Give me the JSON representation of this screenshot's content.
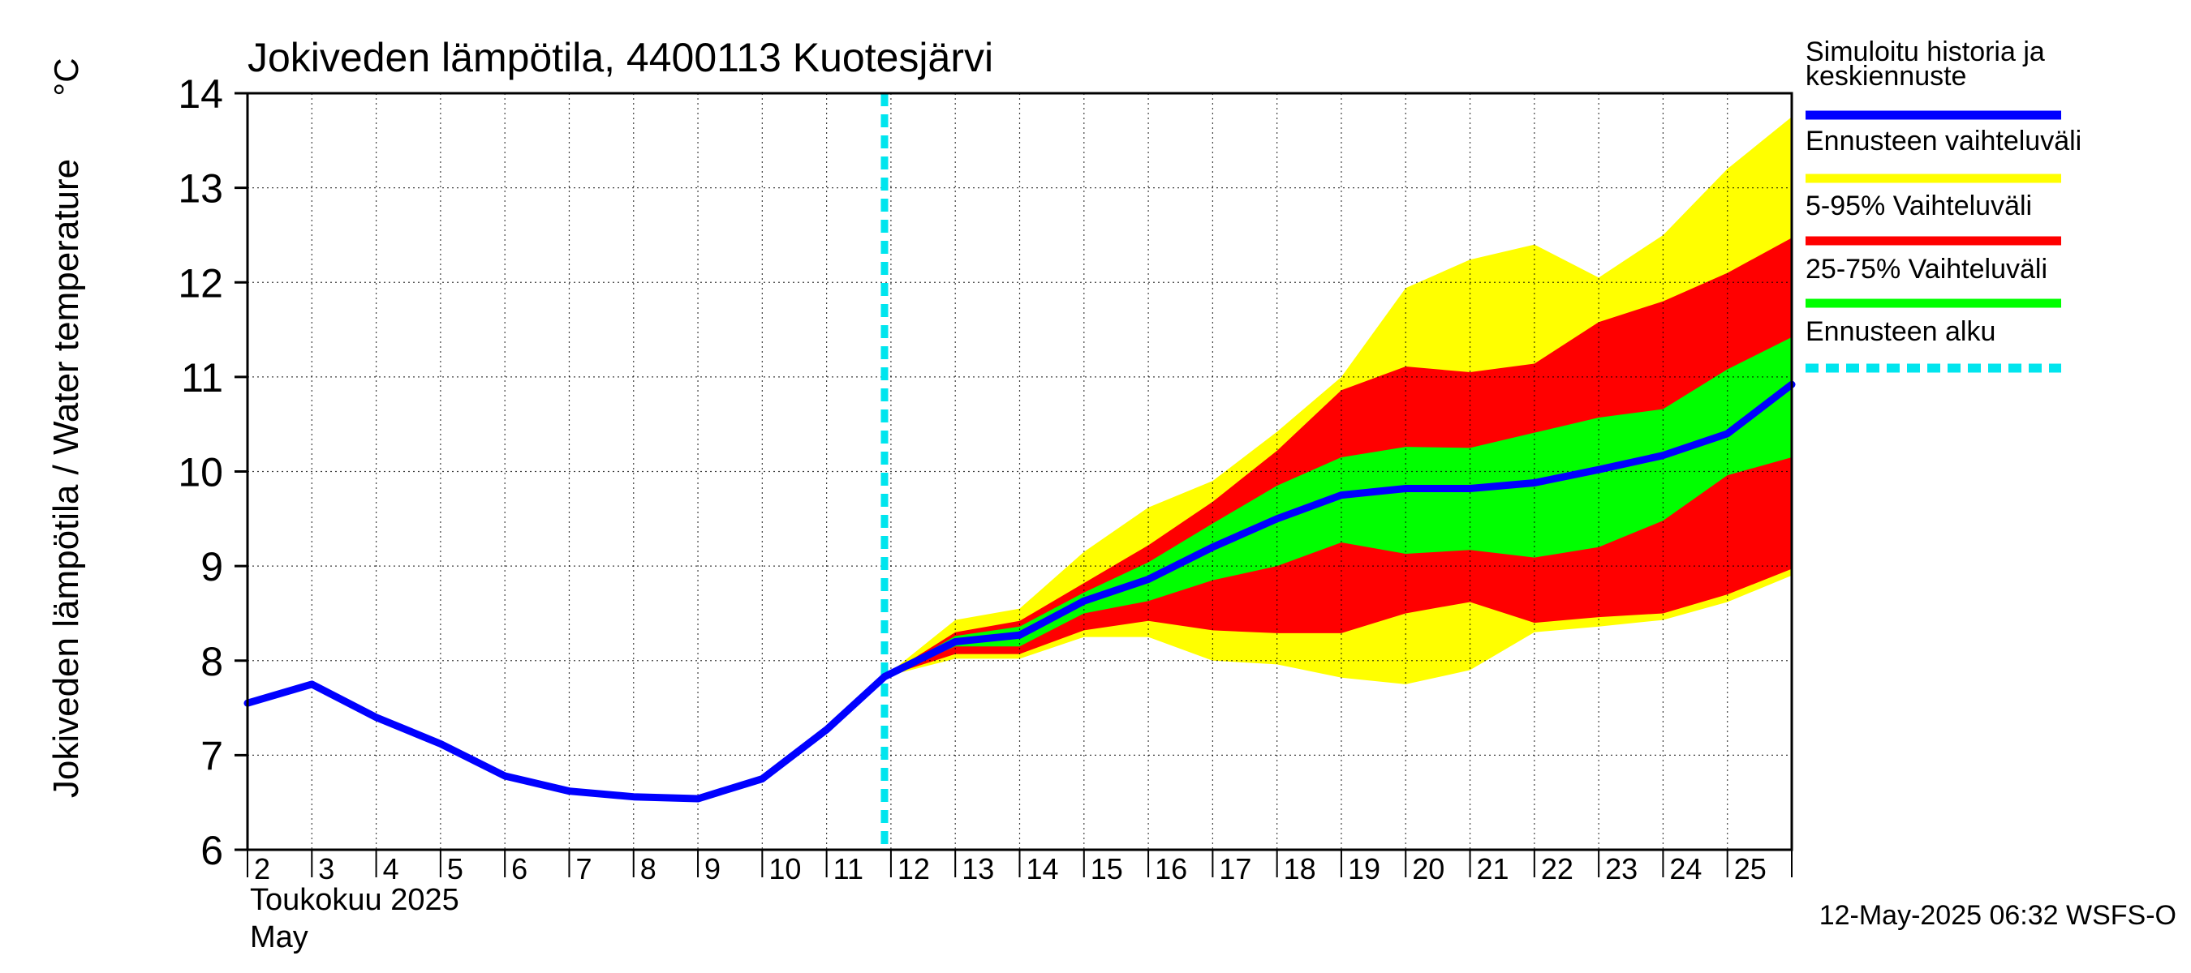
{
  "chart_data": {
    "type": "area",
    "title": "Jokiveden lämpötila, 4400113 Kuotesjärvi",
    "ylabel": "Jokiveden lämpötila / Water temperature",
    "yunit": "°C",
    "month_label_fi": "Toukokuu  2025",
    "month_label_en": "May",
    "timestamp": "12-May-2025 06:32 WSFS-O",
    "ylim": [
      6,
      14
    ],
    "xlim": [
      2,
      26
    ],
    "yticks": [
      6,
      7,
      8,
      9,
      10,
      11,
      12,
      13,
      14
    ],
    "xticks": [
      "2",
      "3",
      "4",
      "5",
      "6",
      "7",
      "8",
      "9",
      "10",
      "11",
      "12",
      "13",
      "14",
      "15",
      "16",
      "17",
      "18",
      "19",
      "20",
      "21",
      "22",
      "23",
      "24",
      "25"
    ],
    "grid": true,
    "forecast_start_day": 11.9,
    "history": {
      "name": "Simuloitu historia ja keskiennuste",
      "x": [
        2,
        3,
        4,
        5,
        6,
        7,
        8,
        9,
        10,
        11,
        11.9
      ],
      "y": [
        7.55,
        7.75,
        7.4,
        7.12,
        6.78,
        6.62,
        6.56,
        6.54,
        6.75,
        7.27,
        7.83
      ]
    },
    "forecast_x": [
      11.9,
      13,
      14,
      15,
      16,
      17,
      18,
      19,
      20,
      21,
      22,
      23,
      24,
      25,
      26
    ],
    "median": [
      7.83,
      8.2,
      8.27,
      8.63,
      8.86,
      9.2,
      9.5,
      9.75,
      9.82,
      9.82,
      9.88,
      10.02,
      10.17,
      10.4,
      10.92
    ],
    "band_yellow": {
      "name": "Ennusteen vaihteluväli",
      "upper": [
        7.83,
        8.43,
        8.55,
        9.15,
        9.62,
        9.9,
        10.42,
        11.0,
        11.94,
        12.24,
        12.4,
        12.05,
        12.5,
        13.2,
        13.75
      ],
      "lower": [
        7.83,
        8.02,
        8.02,
        8.25,
        8.25,
        8.0,
        7.96,
        7.82,
        7.75,
        7.9,
        8.3,
        8.36,
        8.43,
        8.62,
        8.9
      ]
    },
    "band_red": {
      "name": "5-95% Vaihteluväli",
      "upper": [
        7.83,
        8.3,
        8.42,
        8.82,
        9.22,
        9.68,
        10.22,
        10.86,
        11.11,
        11.05,
        11.14,
        11.58,
        11.8,
        12.1,
        12.47
      ],
      "lower": [
        7.83,
        8.07,
        8.07,
        8.32,
        8.42,
        8.32,
        8.29,
        8.29,
        8.5,
        8.62,
        8.4,
        8.46,
        8.5,
        8.7,
        8.97
      ]
    },
    "band_green": {
      "name": "25-75% Vaihteluväli",
      "upper": [
        7.83,
        8.26,
        8.36,
        8.72,
        9.04,
        9.45,
        9.85,
        10.15,
        10.26,
        10.25,
        10.41,
        10.57,
        10.66,
        11.08,
        11.42
      ],
      "lower": [
        7.83,
        8.15,
        8.15,
        8.5,
        8.63,
        8.85,
        9.0,
        9.25,
        9.13,
        9.17,
        9.09,
        9.2,
        9.48,
        9.96,
        10.15
      ]
    },
    "legend": [
      {
        "label": "Simuloitu historia ja",
        "label2": "keskiennuste",
        "color": "#0000ff",
        "style": "solid"
      },
      {
        "label": "Ennusteen vaihteluväli",
        "label2": "",
        "color": "#ffff00",
        "style": "solid"
      },
      {
        "label": "5-95% Vaihteluväli",
        "label2": "",
        "color": "#ff0000",
        "style": "solid"
      },
      {
        "label": "25-75% Vaihteluväli",
        "label2": "",
        "color": "#00ff00",
        "style": "solid"
      },
      {
        "label": "Ennusteen alku",
        "label2": "",
        "color": "#00e5ee",
        "style": "dashed"
      }
    ],
    "legend_position": "right",
    "colors": {
      "history": "#0000ff",
      "yellow": "#ffff00",
      "red": "#ff0000",
      "green": "#00ff00",
      "forecast_line": "#00e5ee",
      "grid": "#000000"
    }
  }
}
